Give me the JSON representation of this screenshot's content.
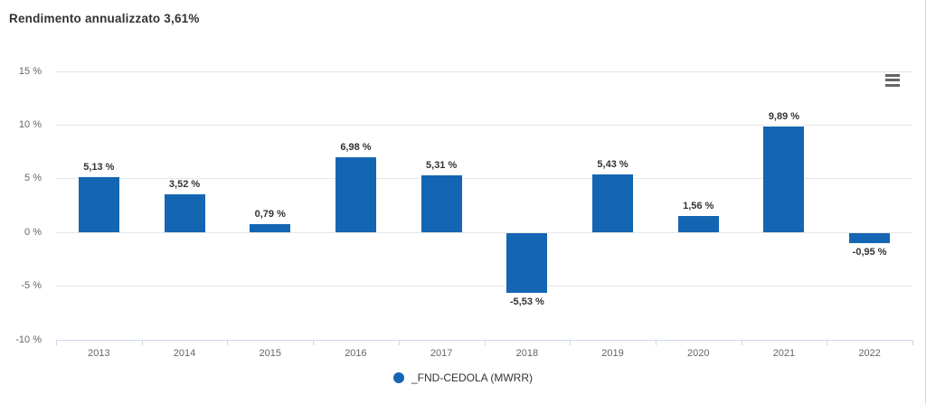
{
  "header": {
    "title": "Rendimento annualizzato 3,61%"
  },
  "toolbar": {
    "menu_icon": "hamburger-icon"
  },
  "legend": {
    "label": "_FND-CEDOLA (MWRR)"
  },
  "colors": {
    "bar": "#1466b2",
    "grid": "#e6e6e6",
    "axis": "#ccd6eb",
    "tick_label": "#666666",
    "data_label": "#333333",
    "title": "#333333",
    "menu_icon": "#666666",
    "legend_text": "#333333"
  },
  "chart_data": {
    "type": "bar",
    "title": "Rendimento annualizzato 3,61%",
    "categories": [
      "2013",
      "2014",
      "2015",
      "2016",
      "2017",
      "2018",
      "2019",
      "2020",
      "2021",
      "2022"
    ],
    "values": [
      5.13,
      3.52,
      0.79,
      6.98,
      5.31,
      -5.53,
      5.43,
      1.56,
      9.89,
      -0.95
    ],
    "value_labels": [
      "5,13 %",
      "3,52 %",
      "0,79 %",
      "6,98 %",
      "5,31 %",
      "-5,53 %",
      "5,43 %",
      "1,56 %",
      "9,89 %",
      "-0,95 %"
    ],
    "series_name": "_FND-CEDOLA (MWRR)",
    "xlabel": "",
    "ylabel": "",
    "y_ticks": [
      15,
      10,
      5,
      0,
      -5,
      -10
    ],
    "y_tick_labels": [
      "15 %",
      "10 %",
      "5 %",
      "0 %",
      "-5 %",
      "-10 %"
    ],
    "ylim": [
      -10,
      15
    ],
    "grid": true,
    "legend_position": "bottom"
  }
}
